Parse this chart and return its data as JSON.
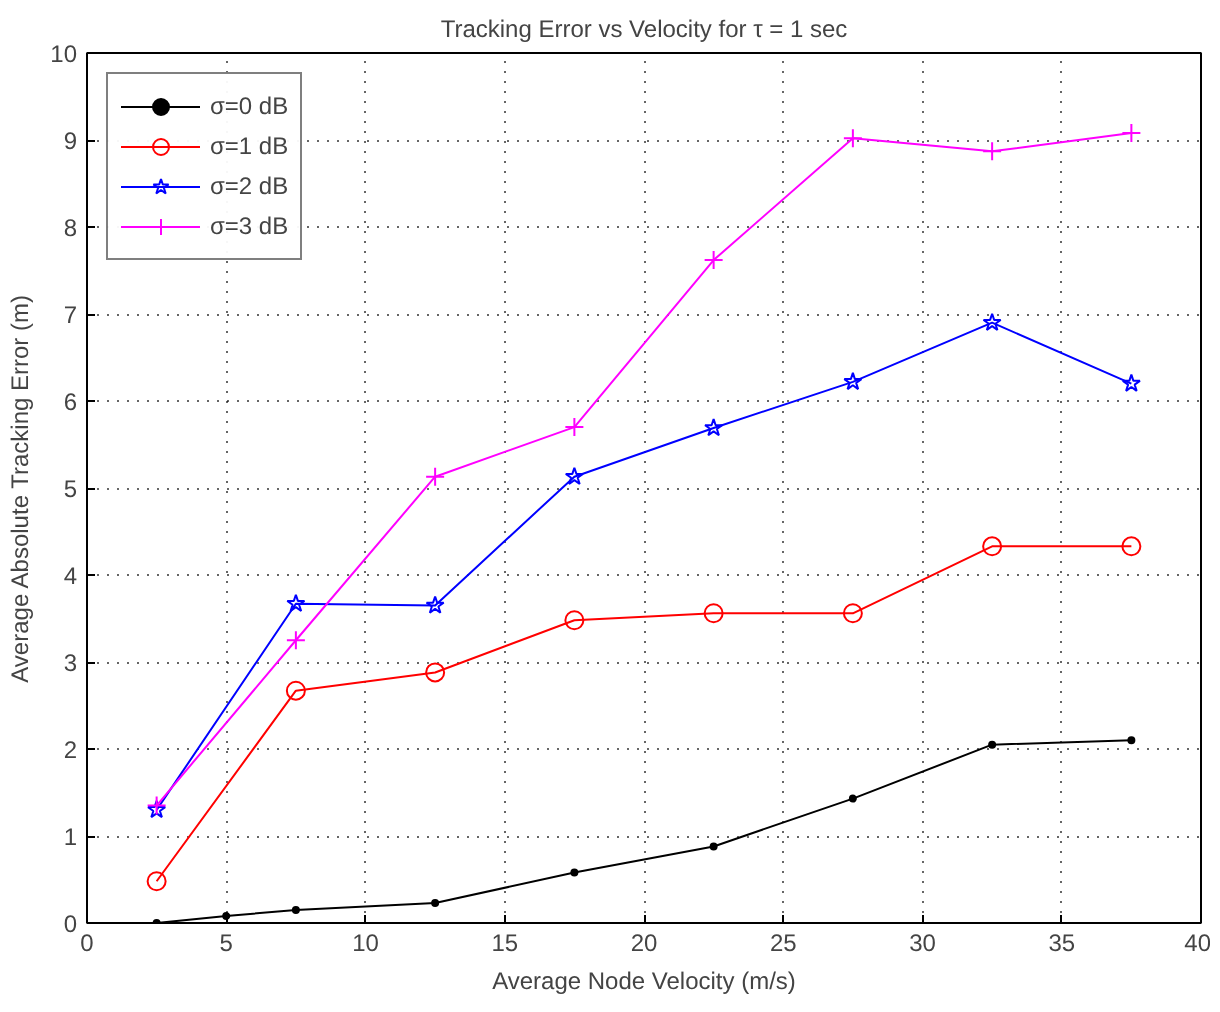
{
  "chart_data": {
    "type": "line",
    "title": "Tracking Error vs Velocity for τ = 1 sec",
    "xlabel": "Average Node Velocity (m/s)",
    "ylabel": "Average Absolute Tracking Error (m)",
    "xlim": [
      0,
      40
    ],
    "ylim": [
      0,
      10
    ],
    "xticks": [
      0,
      5,
      10,
      15,
      20,
      25,
      30,
      35,
      40
    ],
    "yticks": [
      0,
      1,
      2,
      3,
      4,
      5,
      6,
      7,
      8,
      9,
      10
    ],
    "grid": true,
    "legend": "top left",
    "line_style": "solid",
    "series": [
      {
        "name": "σ=0 dB",
        "color": "#000000",
        "marker": "circle",
        "x": [
          2.5,
          5,
          7.5,
          12.5,
          17.5,
          22.5,
          27.5,
          32.5,
          37.5
        ],
        "values": [
          0.0,
          0.08,
          0.15,
          0.23,
          0.58,
          0.88,
          1.43,
          2.05,
          2.1
        ]
      },
      {
        "name": "σ=1 dB",
        "color": "#ff0000",
        "marker": "circle",
        "x": [
          2.5,
          7.5,
          12.5,
          17.5,
          22.5,
          27.5,
          32.5,
          37.5
        ],
        "values": [
          0.48,
          2.67,
          2.88,
          3.48,
          3.56,
          3.56,
          4.33,
          4.33
        ]
      },
      {
        "name": "σ=2 dB",
        "color": "#0000ff",
        "marker": "star",
        "x": [
          2.5,
          7.5,
          12.5,
          17.5,
          22.5,
          27.5,
          32.5,
          37.5
        ],
        "values": [
          1.3,
          3.67,
          3.65,
          5.13,
          5.69,
          6.22,
          6.9,
          6.2
        ]
      },
      {
        "name": "σ=3 dB",
        "color": "#ff00ff",
        "marker": "cross",
        "x": [
          2.5,
          7.5,
          12.5,
          17.5,
          22.5,
          27.5,
          32.5,
          37.5
        ],
        "values": [
          1.35,
          3.25,
          5.13,
          5.7,
          7.62,
          9.02,
          8.87,
          9.08
        ]
      }
    ]
  }
}
